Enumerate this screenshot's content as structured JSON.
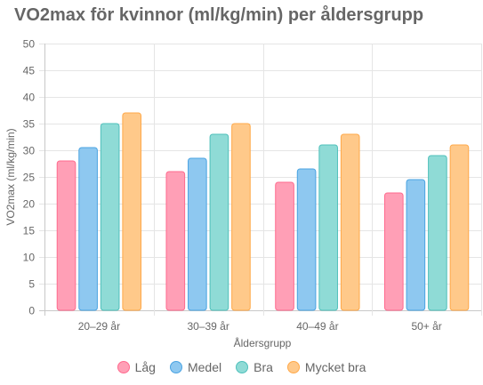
{
  "chart_data": {
    "type": "bar",
    "title": "VO2max för kvinnor (ml/kg/min) per åldersgrupp",
    "xlabel": "Åldersgrupp",
    "ylabel": "VO2max (ml/kg/min)",
    "categories": [
      "20–29 år",
      "30–39 år",
      "40–49 år",
      "50+ år"
    ],
    "ylim": [
      0,
      50
    ],
    "yticks": [
      0,
      5,
      10,
      15,
      20,
      25,
      30,
      35,
      40,
      45,
      50
    ],
    "grid": true,
    "legend_position": "bottom",
    "series": [
      {
        "name": "Låg",
        "values": [
          28,
          26,
          24,
          22
        ],
        "color": "#ff9fb6",
        "border": "#ff6a8e"
      },
      {
        "name": "Medel",
        "values": [
          30.5,
          28.5,
          26.5,
          24.5
        ],
        "color": "#8ec8f0",
        "border": "#4aa3e2"
      },
      {
        "name": "Bra",
        "values": [
          35,
          33,
          31,
          29
        ],
        "color": "#8fdbd6",
        "border": "#4fc0bb"
      },
      {
        "name": "Mycket bra",
        "values": [
          37,
          35,
          33,
          31
        ],
        "color": "#ffc98a",
        "border": "#ffa94a"
      }
    ]
  }
}
